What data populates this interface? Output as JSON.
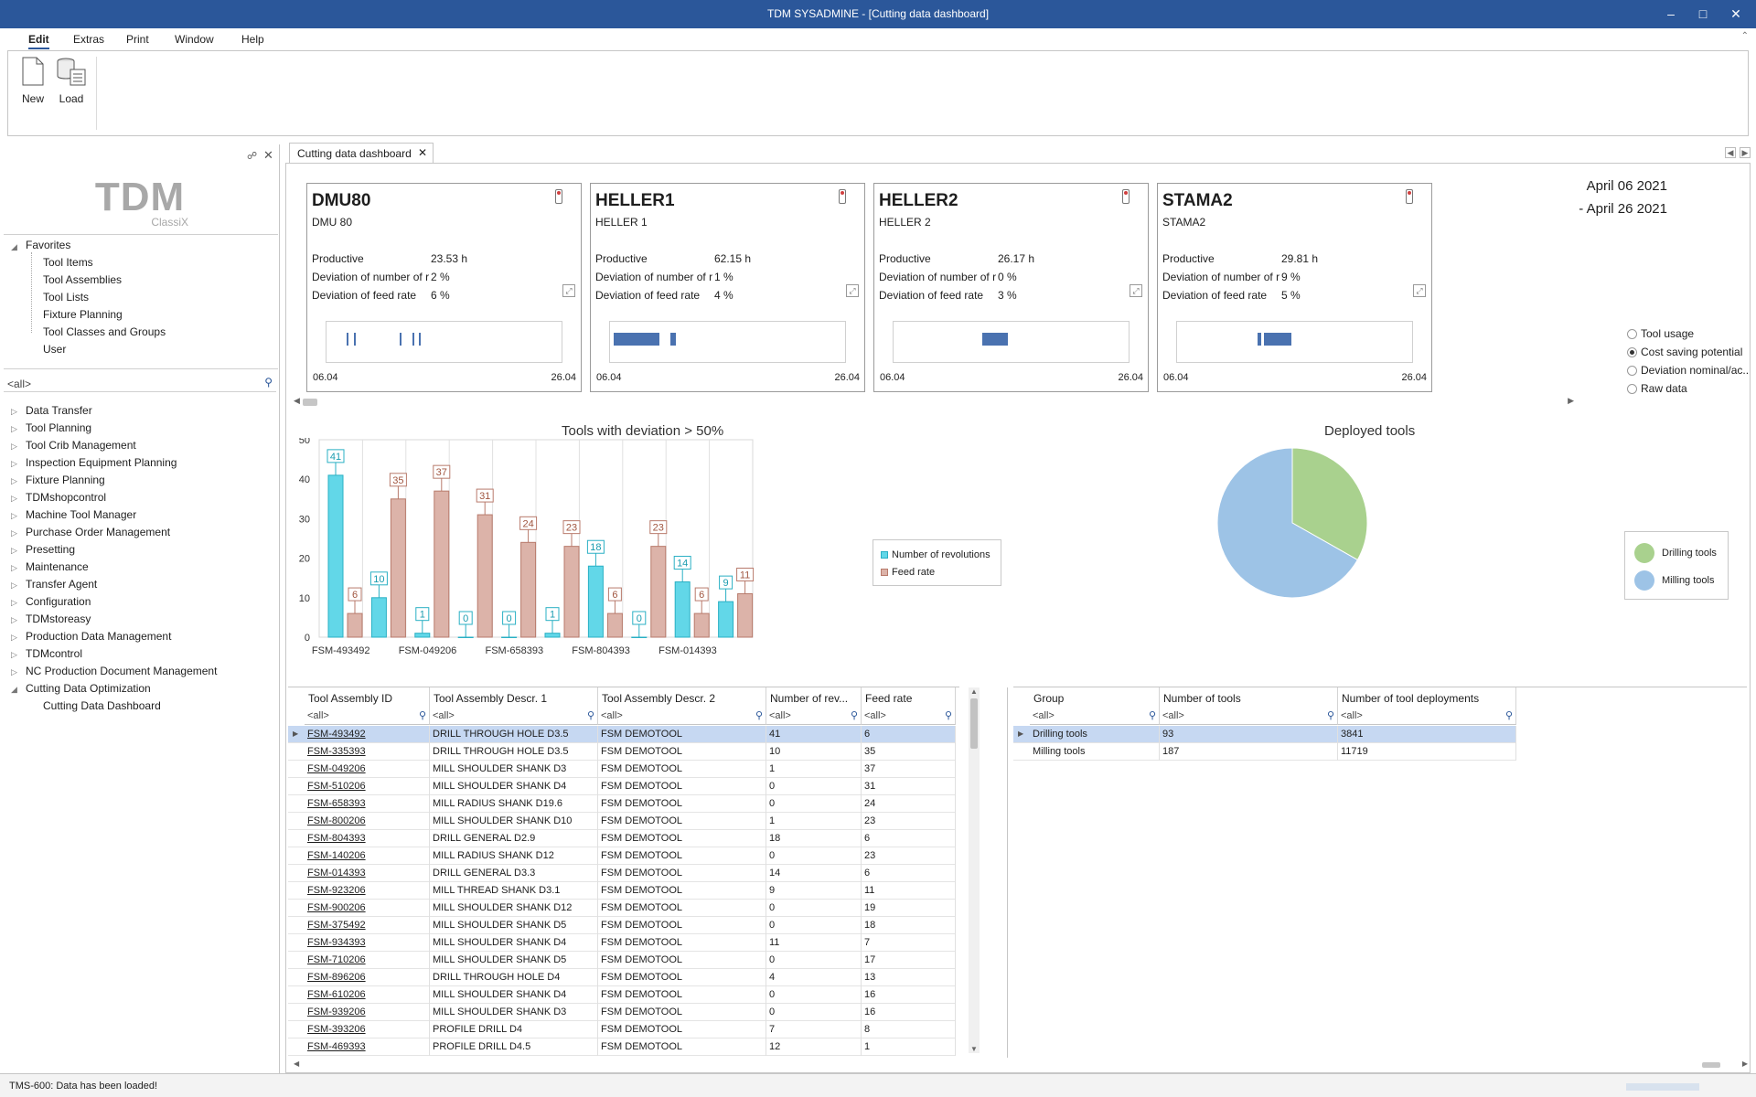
{
  "window": {
    "title": "TDM SYSADMINE - [Cutting data dashboard]"
  },
  "menu": {
    "items": [
      "Edit",
      "Extras",
      "Print",
      "Window",
      "Help"
    ]
  },
  "ribbon": {
    "new_label": "New",
    "load_label": "Load"
  },
  "sidebar": {
    "logo_big": "TDM",
    "logo_small": "ClassiX",
    "favorites_label": "Favorites",
    "favorites": [
      "Tool Items",
      "Tool Assemblies",
      "Tool Lists",
      "Fixture Planning",
      "Tool Classes and Groups",
      "User"
    ],
    "search_value": "<all>",
    "modules": [
      "Data Transfer",
      "Tool Planning",
      "Tool Crib Management",
      "Inspection Equipment Planning",
      "Fixture Planning",
      "TDMshopcontrol",
      "Machine Tool Manager",
      "Purchase Order Management",
      "Presetting",
      "Maintenance",
      "Transfer Agent",
      "Configuration",
      "TDMstoreasy",
      "Production Data Management",
      "TDMcontrol",
      "NC Production Document Management",
      "Cutting Data Optimization"
    ],
    "sub_item": "Cutting Data Dashboard"
  },
  "tabs": {
    "active": "Cutting data dashboard"
  },
  "machines": [
    {
      "name": "DMU80",
      "desc": "DMU 80",
      "productive_label": "Productive",
      "productive": "23.53 h",
      "dev_rev_label": "Deviation of number of r",
      "dev_rev": "2 %",
      "dev_feed_label": "Deviation of feed rate",
      "dev_feed": "6 %",
      "start": "06.04",
      "end": "26.04"
    },
    {
      "name": "HELLER1",
      "desc": "HELLER 1",
      "productive_label": "Productive",
      "productive": "62.15 h",
      "dev_rev_label": "Deviation of number of r",
      "dev_rev": "1 %",
      "dev_feed_label": "Deviation of feed rate",
      "dev_feed": "4 %",
      "start": "06.04",
      "end": "26.04"
    },
    {
      "name": "HELLER2",
      "desc": "HELLER 2",
      "productive_label": "Productive",
      "productive": "26.17 h",
      "dev_rev_label": "Deviation of number of r",
      "dev_rev": "0 %",
      "dev_feed_label": "Deviation of feed rate",
      "dev_feed": "3 %",
      "start": "06.04",
      "end": "26.04"
    },
    {
      "name": "STAMA2",
      "desc": "STAMA2",
      "productive_label": "Productive",
      "productive": "29.81 h",
      "dev_rev_label": "Deviation of number of r",
      "dev_rev": "9 %",
      "dev_feed_label": "Deviation of feed rate",
      "dev_feed": "5 %",
      "start": "06.04",
      "end": "26.04"
    }
  ],
  "date_range": {
    "from": "April 06 2021",
    "to": "- April 26 2021"
  },
  "view_options": {
    "items": [
      "Tool usage",
      "Cost saving potential",
      "Deviation nominal/ac..",
      "Raw data"
    ],
    "selected": "Cost saving potential"
  },
  "colors": {
    "accent": "#2b579a",
    "revolutions": "#62d7e8",
    "feed": "#dcb3a9",
    "drilling": "#a9d18e",
    "milling": "#9dc3e6",
    "selected_row": "#c6d8f2",
    "timeline": "#4a72b0"
  },
  "chart_data": [
    {
      "type": "bar",
      "title": "Tools with deviation > 50%",
      "categories": [
        "FSM-493492",
        "FSM-335393",
        "FSM-049206",
        "FSM-510206",
        "FSM-658393",
        "FSM-800206",
        "FSM-804393",
        "FSM-140206",
        "FSM-014393",
        "FSM-923206"
      ],
      "x_tick_labels": [
        "FSM-493492",
        "FSM-049206",
        "FSM-658393",
        "FSM-804393",
        "FSM-014393"
      ],
      "series": [
        {
          "name": "Number of revolutions",
          "values": [
            41,
            10,
            1,
            0,
            0,
            1,
            18,
            0,
            14,
            9
          ]
        },
        {
          "name": "Feed rate",
          "values": [
            6,
            35,
            37,
            31,
            24,
            23,
            6,
            23,
            6,
            11
          ]
        }
      ],
      "ylim": [
        0,
        50
      ],
      "yticks": [
        0,
        10,
        20,
        30,
        40,
        50
      ],
      "legend_position": "right"
    },
    {
      "type": "pie",
      "title": "Deployed tools",
      "labels": [
        "Drilling tools",
        "Milling tools"
      ],
      "values": [
        93,
        187
      ],
      "legend_position": "right"
    }
  ],
  "grid_left": {
    "columns": [
      "Tool Assembly ID",
      "Tool Assembly Descr. 1",
      "Tool Assembly Descr. 2",
      "Number of rev...",
      "Feed rate"
    ],
    "filter": "<all>",
    "rows": [
      [
        "FSM-493492",
        "DRILL THROUGH HOLE D3.5",
        "FSM DEMOTOOL",
        "41",
        "6"
      ],
      [
        "FSM-335393",
        "DRILL THROUGH HOLE D3.5",
        "FSM DEMOTOOL",
        "10",
        "35"
      ],
      [
        "FSM-049206",
        "MILL SHOULDER SHANK D3",
        "FSM DEMOTOOL",
        "1",
        "37"
      ],
      [
        "FSM-510206",
        "MILL SHOULDER SHANK D4",
        "FSM DEMOTOOL",
        "0",
        "31"
      ],
      [
        "FSM-658393",
        "MILL RADIUS SHANK D19.6",
        "FSM DEMOTOOL",
        "0",
        "24"
      ],
      [
        "FSM-800206",
        "MILL SHOULDER SHANK D10",
        "FSM DEMOTOOL",
        "1",
        "23"
      ],
      [
        "FSM-804393",
        "DRILL GENERAL D2.9",
        "FSM DEMOTOOL",
        "18",
        "6"
      ],
      [
        "FSM-140206",
        "MILL RADIUS SHANK D12",
        "FSM DEMOTOOL",
        "0",
        "23"
      ],
      [
        "FSM-014393",
        "DRILL GENERAL D3.3",
        "FSM DEMOTOOL",
        "14",
        "6"
      ],
      [
        "FSM-923206",
        "MILL THREAD SHANK D3.1",
        "FSM DEMOTOOL",
        "9",
        "11"
      ],
      [
        "FSM-900206",
        "MILL SHOULDER SHANK D12",
        "FSM DEMOTOOL",
        "0",
        "19"
      ],
      [
        "FSM-375492",
        "MILL SHOULDER SHANK D5",
        "FSM DEMOTOOL",
        "0",
        "18"
      ],
      [
        "FSM-934393",
        "MILL SHOULDER SHANK D4",
        "FSM DEMOTOOL",
        "11",
        "7"
      ],
      [
        "FSM-710206",
        "MILL SHOULDER SHANK D5",
        "FSM DEMOTOOL",
        "0",
        "17"
      ],
      [
        "FSM-896206",
        "DRILL THROUGH HOLE D4",
        "FSM DEMOTOOL",
        "4",
        "13"
      ],
      [
        "FSM-610206",
        "MILL SHOULDER SHANK D4",
        "FSM DEMOTOOL",
        "0",
        "16"
      ],
      [
        "FSM-939206",
        "MILL SHOULDER SHANK D3",
        "FSM DEMOTOOL",
        "0",
        "16"
      ],
      [
        "FSM-393206",
        "PROFILE DRILL D4",
        "FSM DEMOTOOL",
        "7",
        "8"
      ],
      [
        "FSM-469393",
        "PROFILE DRILL D4.5",
        "FSM DEMOTOOL",
        "12",
        "1"
      ]
    ]
  },
  "grid_right": {
    "columns": [
      "Group",
      "Number of tools",
      "Number of tool deployments"
    ],
    "filter": "<all>",
    "rows": [
      [
        "Drilling tools",
        "93",
        "3841"
      ],
      [
        "Milling tools",
        "187",
        "11719"
      ]
    ]
  },
  "status": {
    "text": "TMS-600: Data has been loaded!"
  }
}
